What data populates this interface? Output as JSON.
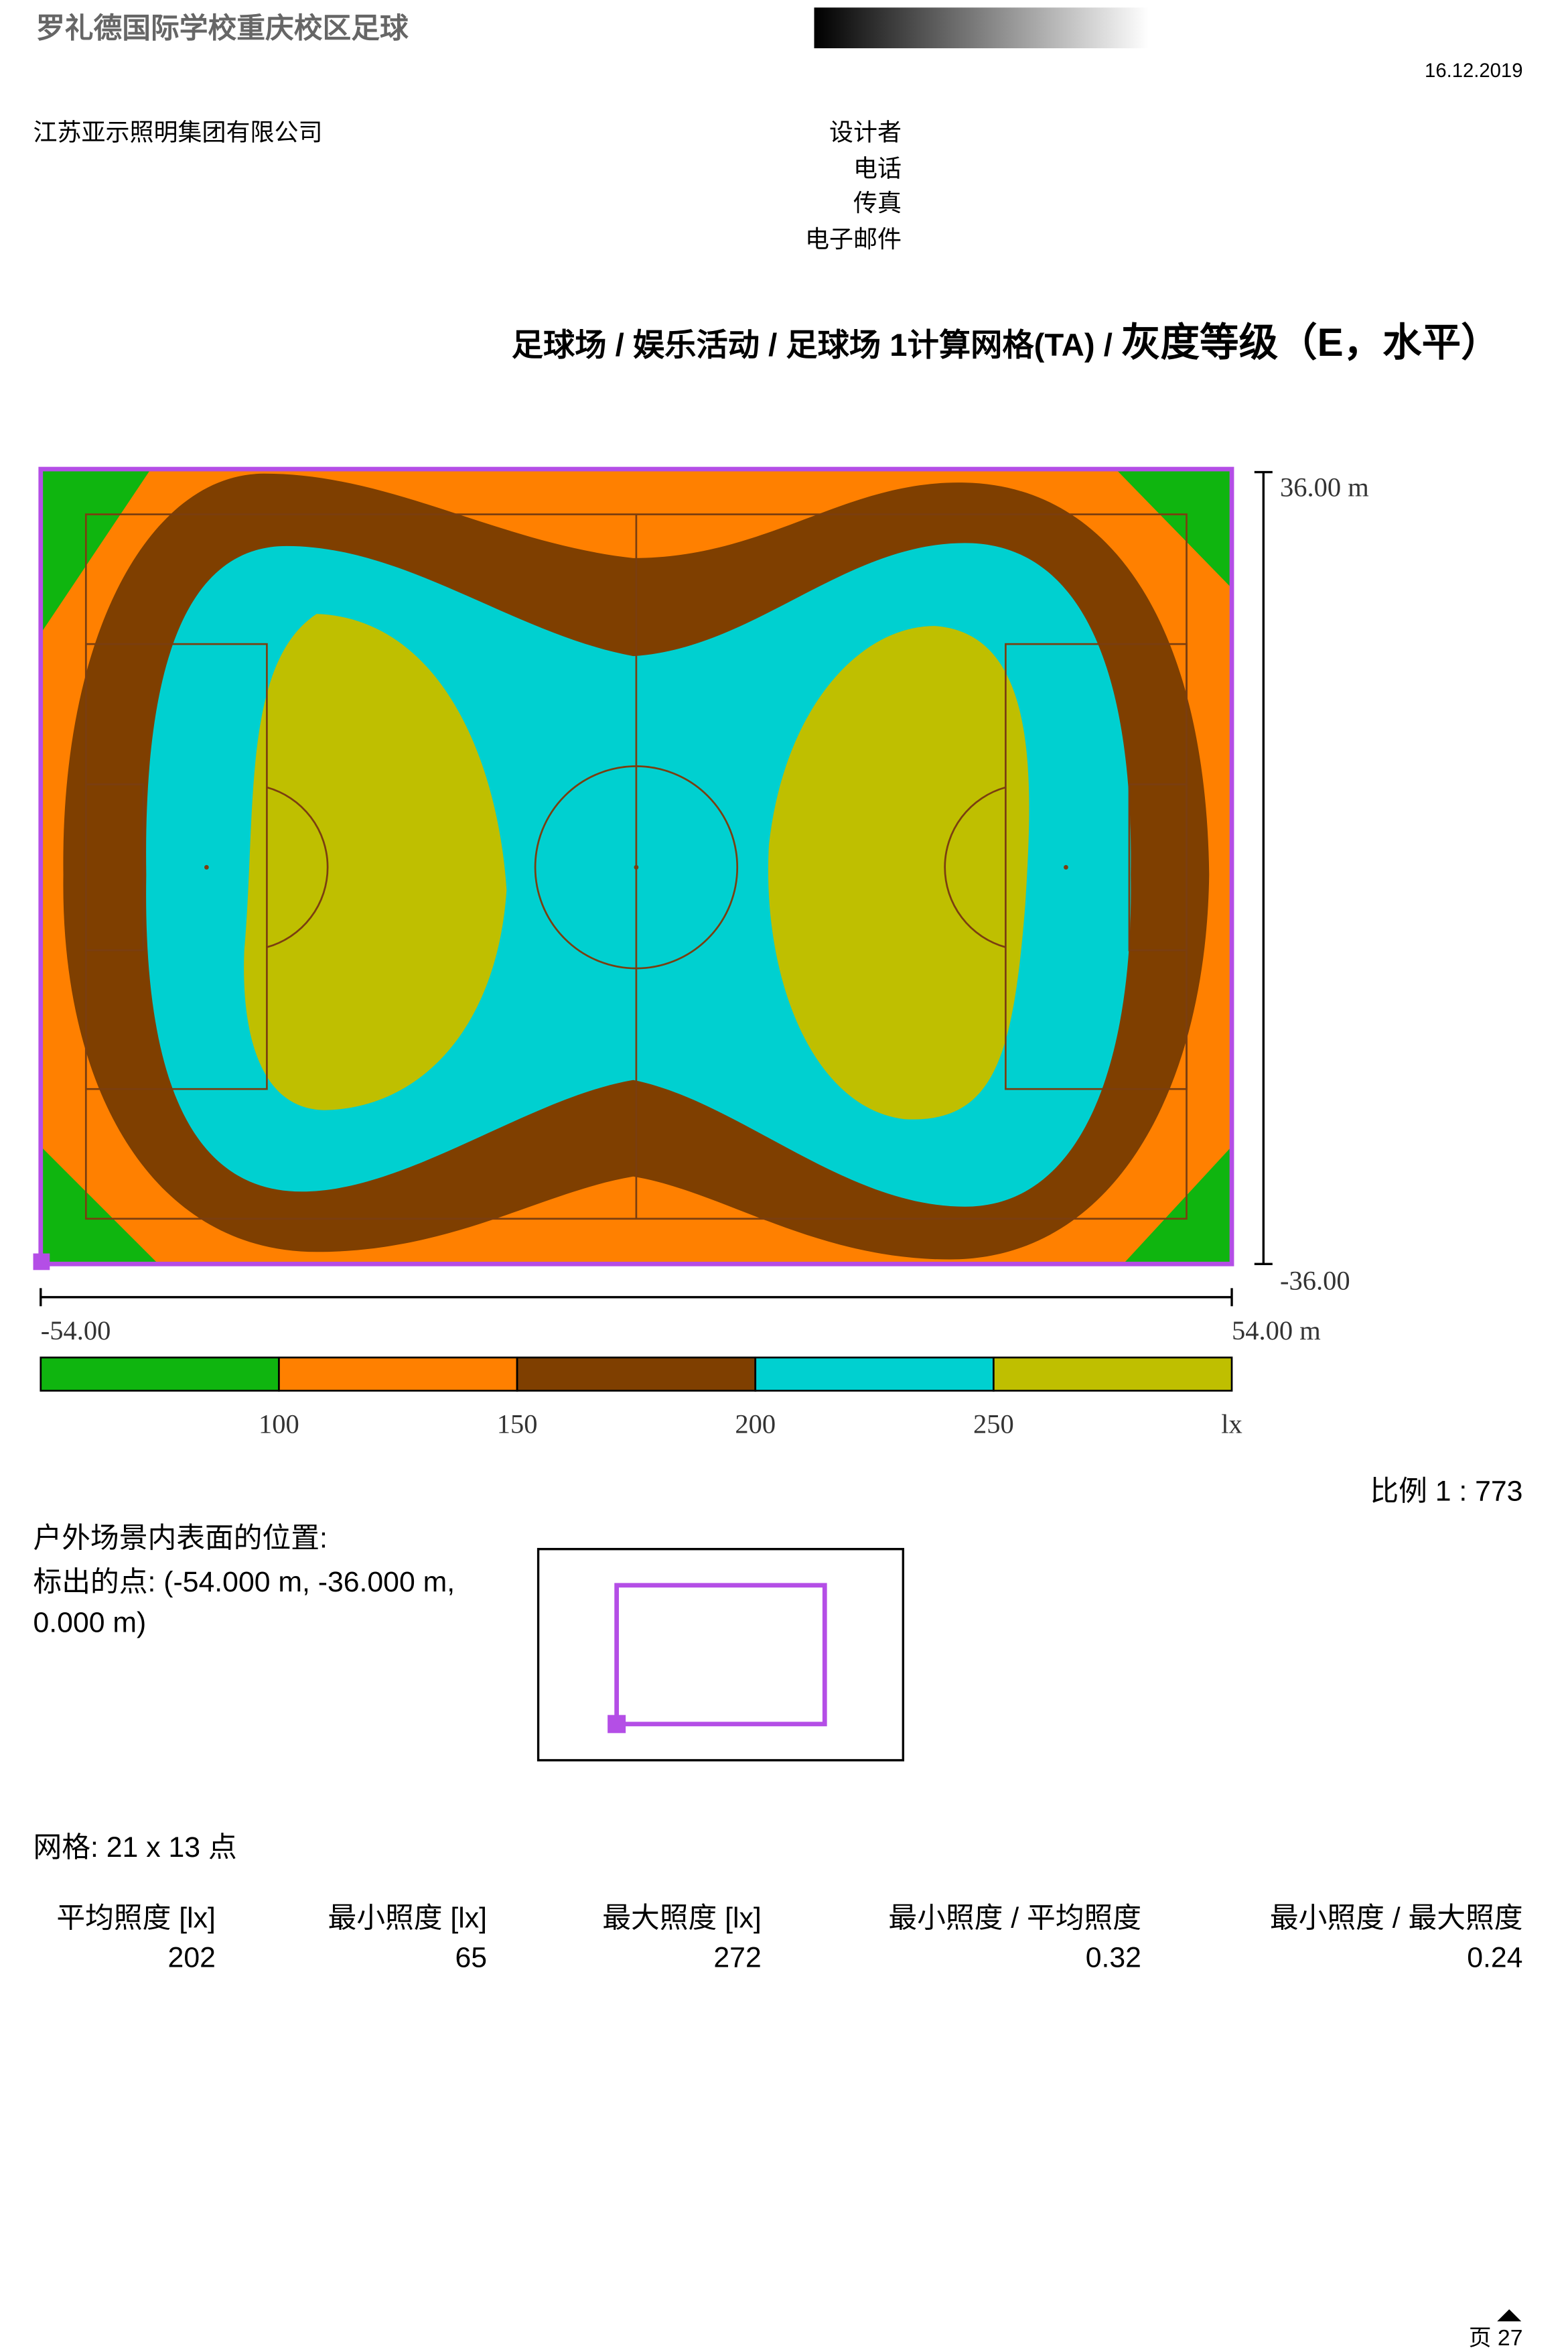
{
  "header": {
    "title": "罗礼德国际学校重庆校区足球",
    "date": "16.12.2019"
  },
  "company": "江苏亚示照明集团有限公司",
  "contact": [
    "设计者",
    "电话",
    "传真",
    "电子邮件"
  ],
  "heading": {
    "path": "足球场 / 娱乐活动 / 足球场 1计算网格(TA) / ",
    "view": "灰度等级（E，水平）"
  },
  "plot": {
    "y_max": "36.00 m",
    "y_min": "-36.00",
    "x_min": "-54.00",
    "x_max": "54.00 m",
    "legend": [
      "100",
      "150",
      "200",
      "250"
    ],
    "unit": "lx"
  },
  "scale": "比例 1 : 773",
  "position": {
    "label": "户外场景内表面的位置:",
    "point_lines": [
      "标出的点: (-54.000 m, -36.000 m,",
      "0.000 m)"
    ]
  },
  "grid": "网格: 21 x 13 点",
  "stats": {
    "headers": [
      "平均照度 [lx]",
      "最小照度 [lx]",
      "最大照度 [lx]",
      "最小照度 / 平均照度",
      "最小照度 / 最大照度"
    ],
    "values": [
      "202",
      "65",
      "272",
      "0.32",
      "0.24"
    ]
  },
  "footer": {
    "page": "页 27"
  }
}
